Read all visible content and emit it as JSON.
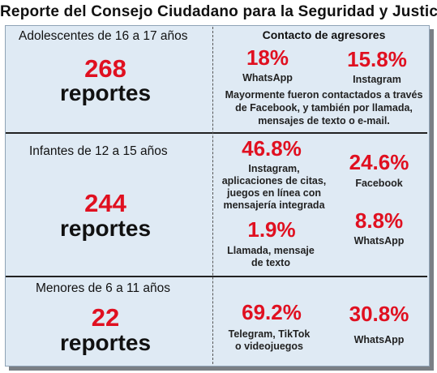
{
  "title": "Reporte del Consejo Ciudadano para la Seguridad y Justicia",
  "right_header": "Contacto de agresores",
  "sections": [
    {
      "label": "Adolescentes de 16 a 17 años",
      "count": "268",
      "count_word": "reportes",
      "stats": [
        {
          "pct": "18%",
          "platform": "WhatsApp"
        },
        {
          "pct": "15.8%",
          "platform": "Instagram"
        }
      ],
      "note": "Mayormente fueron contactados a través de Facebook, y también por llamada, mensajes de texto o e-mail."
    },
    {
      "label": "Infantes de 12 a 15 años",
      "count": "244",
      "count_word": "reportes",
      "stats": [
        {
          "pct": "46.8%",
          "platform": "Instagram, aplicaciones de citas, juegos en línea con mensajería integrada"
        },
        {
          "pct": "24.6%",
          "platform": "Facebook"
        },
        {
          "pct": "1.9%",
          "platform": "Llamada, mensaje de texto"
        },
        {
          "pct": "8.8%",
          "platform": "WhatsApp"
        }
      ]
    },
    {
      "label": "Menores de 6 a 11 años",
      "count": "22",
      "count_word": "reportes",
      "stats": [
        {
          "pct": "69.2%",
          "platform": "Telegram, TikTok o videojuegos"
        },
        {
          "pct": "30.8%",
          "platform": "WhatsApp"
        }
      ]
    }
  ]
}
